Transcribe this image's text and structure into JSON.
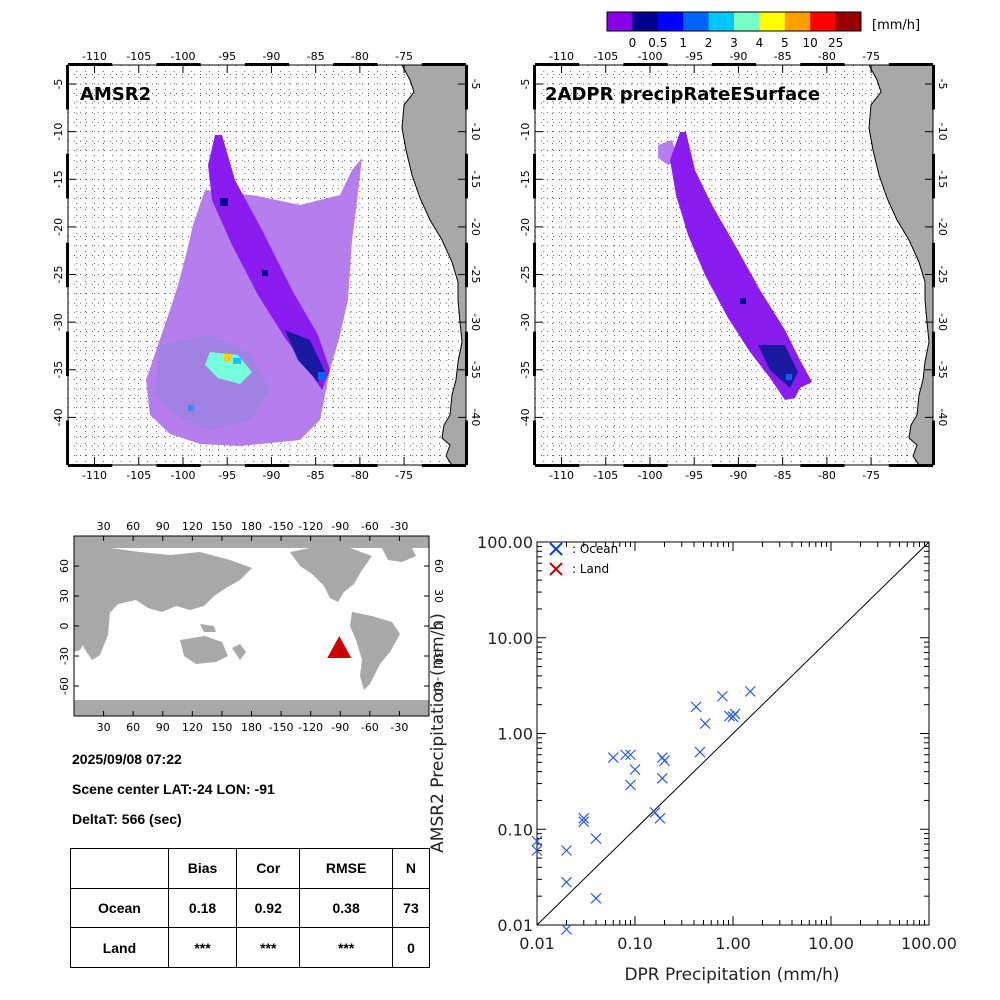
{
  "colorbar": {
    "unit": "[mm/h]",
    "colors": [
      "#8a00e6",
      "#00008c",
      "#0000ff",
      "#0064ff",
      "#00c8ff",
      "#78ffc8",
      "#ffff00",
      "#ffa000",
      "#ff0000",
      "#960000"
    ],
    "labels": [
      "0",
      "0.5",
      "1",
      "2",
      "3",
      "4",
      "5",
      "10",
      "25"
    ]
  },
  "maps": [
    {
      "title": "AMSR2",
      "lon_labels": [
        "-110",
        "-105",
        "-100",
        "-95",
        "-90",
        "-85",
        "-80",
        "-75"
      ],
      "lat_labels": [
        "-5",
        "-10",
        "-15",
        "-20",
        "-25",
        "-30",
        "-35",
        "-40"
      ]
    },
    {
      "title": "2ADPR precipRateESurface",
      "lon_labels": [
        "-110",
        "-105",
        "-100",
        "-95",
        "-90",
        "-85",
        "-80",
        "-75"
      ],
      "lat_labels": [
        "-5",
        "-10",
        "-15",
        "-20",
        "-25",
        "-30",
        "-35",
        "-40"
      ]
    }
  ],
  "globe": {
    "lon_labels": [
      "30",
      "60",
      "90",
      "120",
      "150",
      "180",
      "-150",
      "-120",
      "-90",
      "-60",
      "-30"
    ],
    "lat_labels": [
      "60",
      "30",
      "0",
      "-30",
      "-60"
    ],
    "marker_color": "#cc0000",
    "marker_lat": -24,
    "marker_lon": -91
  },
  "info": {
    "datetime": "2025/09/08 07:22",
    "scene_center": "Scene center LAT:-24   LON: -91",
    "delta": "DeltaT:  566 (sec)"
  },
  "stats_table": {
    "headers": [
      "",
      "Bias",
      "Cor",
      "RMSE",
      "N"
    ],
    "rows": [
      {
        "label": "Ocean",
        "bias": "0.18",
        "cor": "0.92",
        "rmse": "0.38",
        "n": "73"
      },
      {
        "label": "Land",
        "bias": "***",
        "cor": "***",
        "rmse": "***",
        "n": "0"
      }
    ]
  },
  "chart_data": {
    "type": "scatter",
    "title": "",
    "xlabel": "DPR Precipitation (mm/h)",
    "ylabel": "AMSR2 Precipitation (mm/h)",
    "xscale": "log",
    "yscale": "log",
    "xlim": [
      0.01,
      100
    ],
    "ylim": [
      0.01,
      100
    ],
    "tick_labels": [
      "0.01",
      "0.10",
      "1.00",
      "10.00",
      "100.00"
    ],
    "tick_values": [
      0.01,
      0.1,
      1,
      10,
      100
    ],
    "legend": [
      {
        "name": ": Ocean",
        "color": "#0044dd"
      },
      {
        "name": ": Land",
        "color": "#cc0000"
      }
    ],
    "legend_position": "top-left",
    "reference_line": "1:1",
    "series": [
      {
        "name": "Ocean",
        "color": "#2a5ce0",
        "points": [
          [
            0.01,
            0.06
          ],
          [
            0.01,
            0.075
          ],
          [
            0.02,
            0.06
          ],
          [
            0.02,
            0.028
          ],
          [
            0.02,
            0.009
          ],
          [
            0.03,
            0.12
          ],
          [
            0.03,
            0.13
          ],
          [
            0.04,
            0.08
          ],
          [
            0.04,
            0.019
          ],
          [
            0.06,
            0.56
          ],
          [
            0.08,
            0.6
          ],
          [
            0.09,
            0.6
          ],
          [
            0.09,
            0.29
          ],
          [
            0.1,
            0.42
          ],
          [
            0.16,
            0.15
          ],
          [
            0.18,
            0.13
          ],
          [
            0.19,
            0.56
          ],
          [
            0.2,
            0.52
          ],
          [
            0.19,
            0.34
          ],
          [
            0.42,
            1.9
          ],
          [
            0.46,
            0.64
          ],
          [
            0.52,
            1.27
          ],
          [
            0.78,
            2.45
          ],
          [
            0.92,
            1.52
          ],
          [
            1.05,
            1.6
          ],
          [
            1.0,
            1.5
          ],
          [
            1.5,
            2.75
          ]
        ]
      },
      {
        "name": "Land",
        "color": "#cc0000",
        "points": []
      }
    ]
  }
}
